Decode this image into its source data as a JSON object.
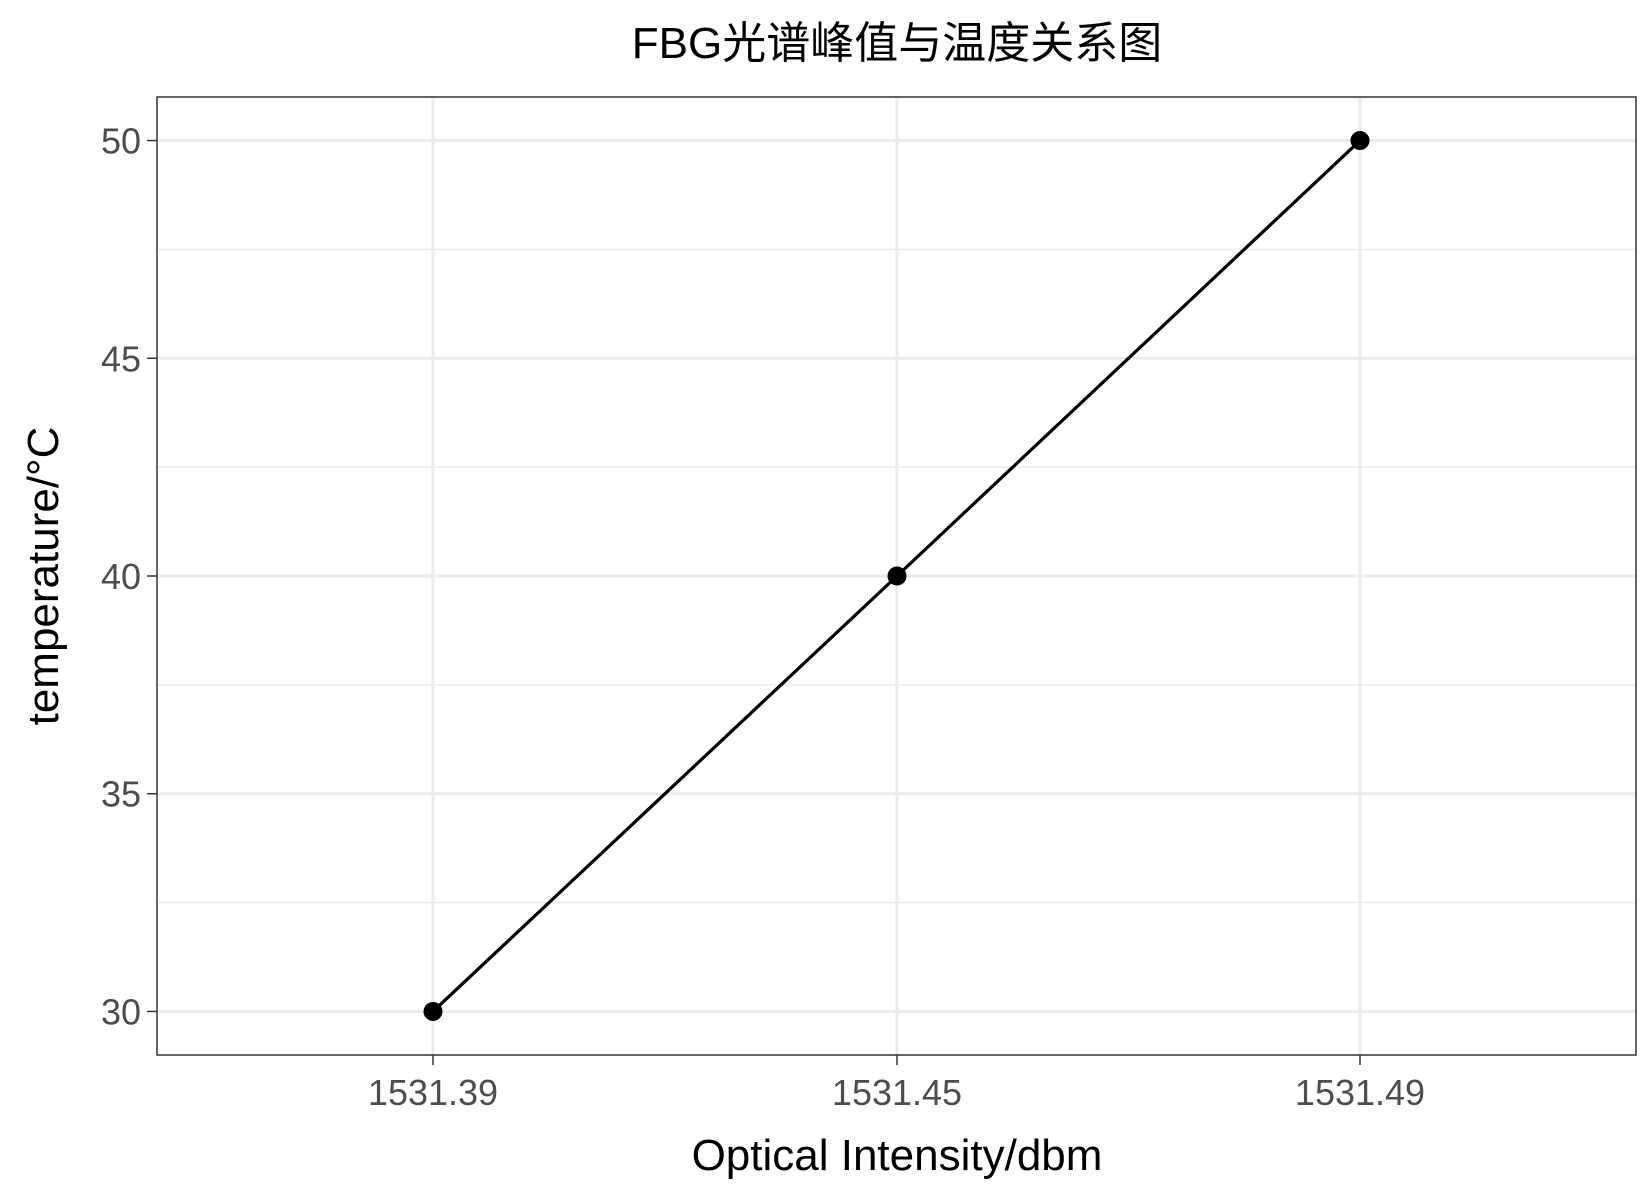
{
  "chart_data": {
    "type": "line",
    "title": "FBG光谱峰值与温度关系图",
    "xlabel": "Optical Intensity/dbm",
    "ylabel": "temperature/°C",
    "x_is_categorical": true,
    "categories": [
      "1531.39",
      "1531.45",
      "1531.49"
    ],
    "series": [
      {
        "values": [
          30,
          40,
          50
        ],
        "color": "#000000",
        "markers": true
      }
    ],
    "ylim": [
      29,
      51
    ],
    "y_ticks": [
      30,
      35,
      40,
      45,
      50
    ],
    "grid": true,
    "legend": "none",
    "panel_border_color": "#333333",
    "grid_color": "#ebebeb"
  }
}
